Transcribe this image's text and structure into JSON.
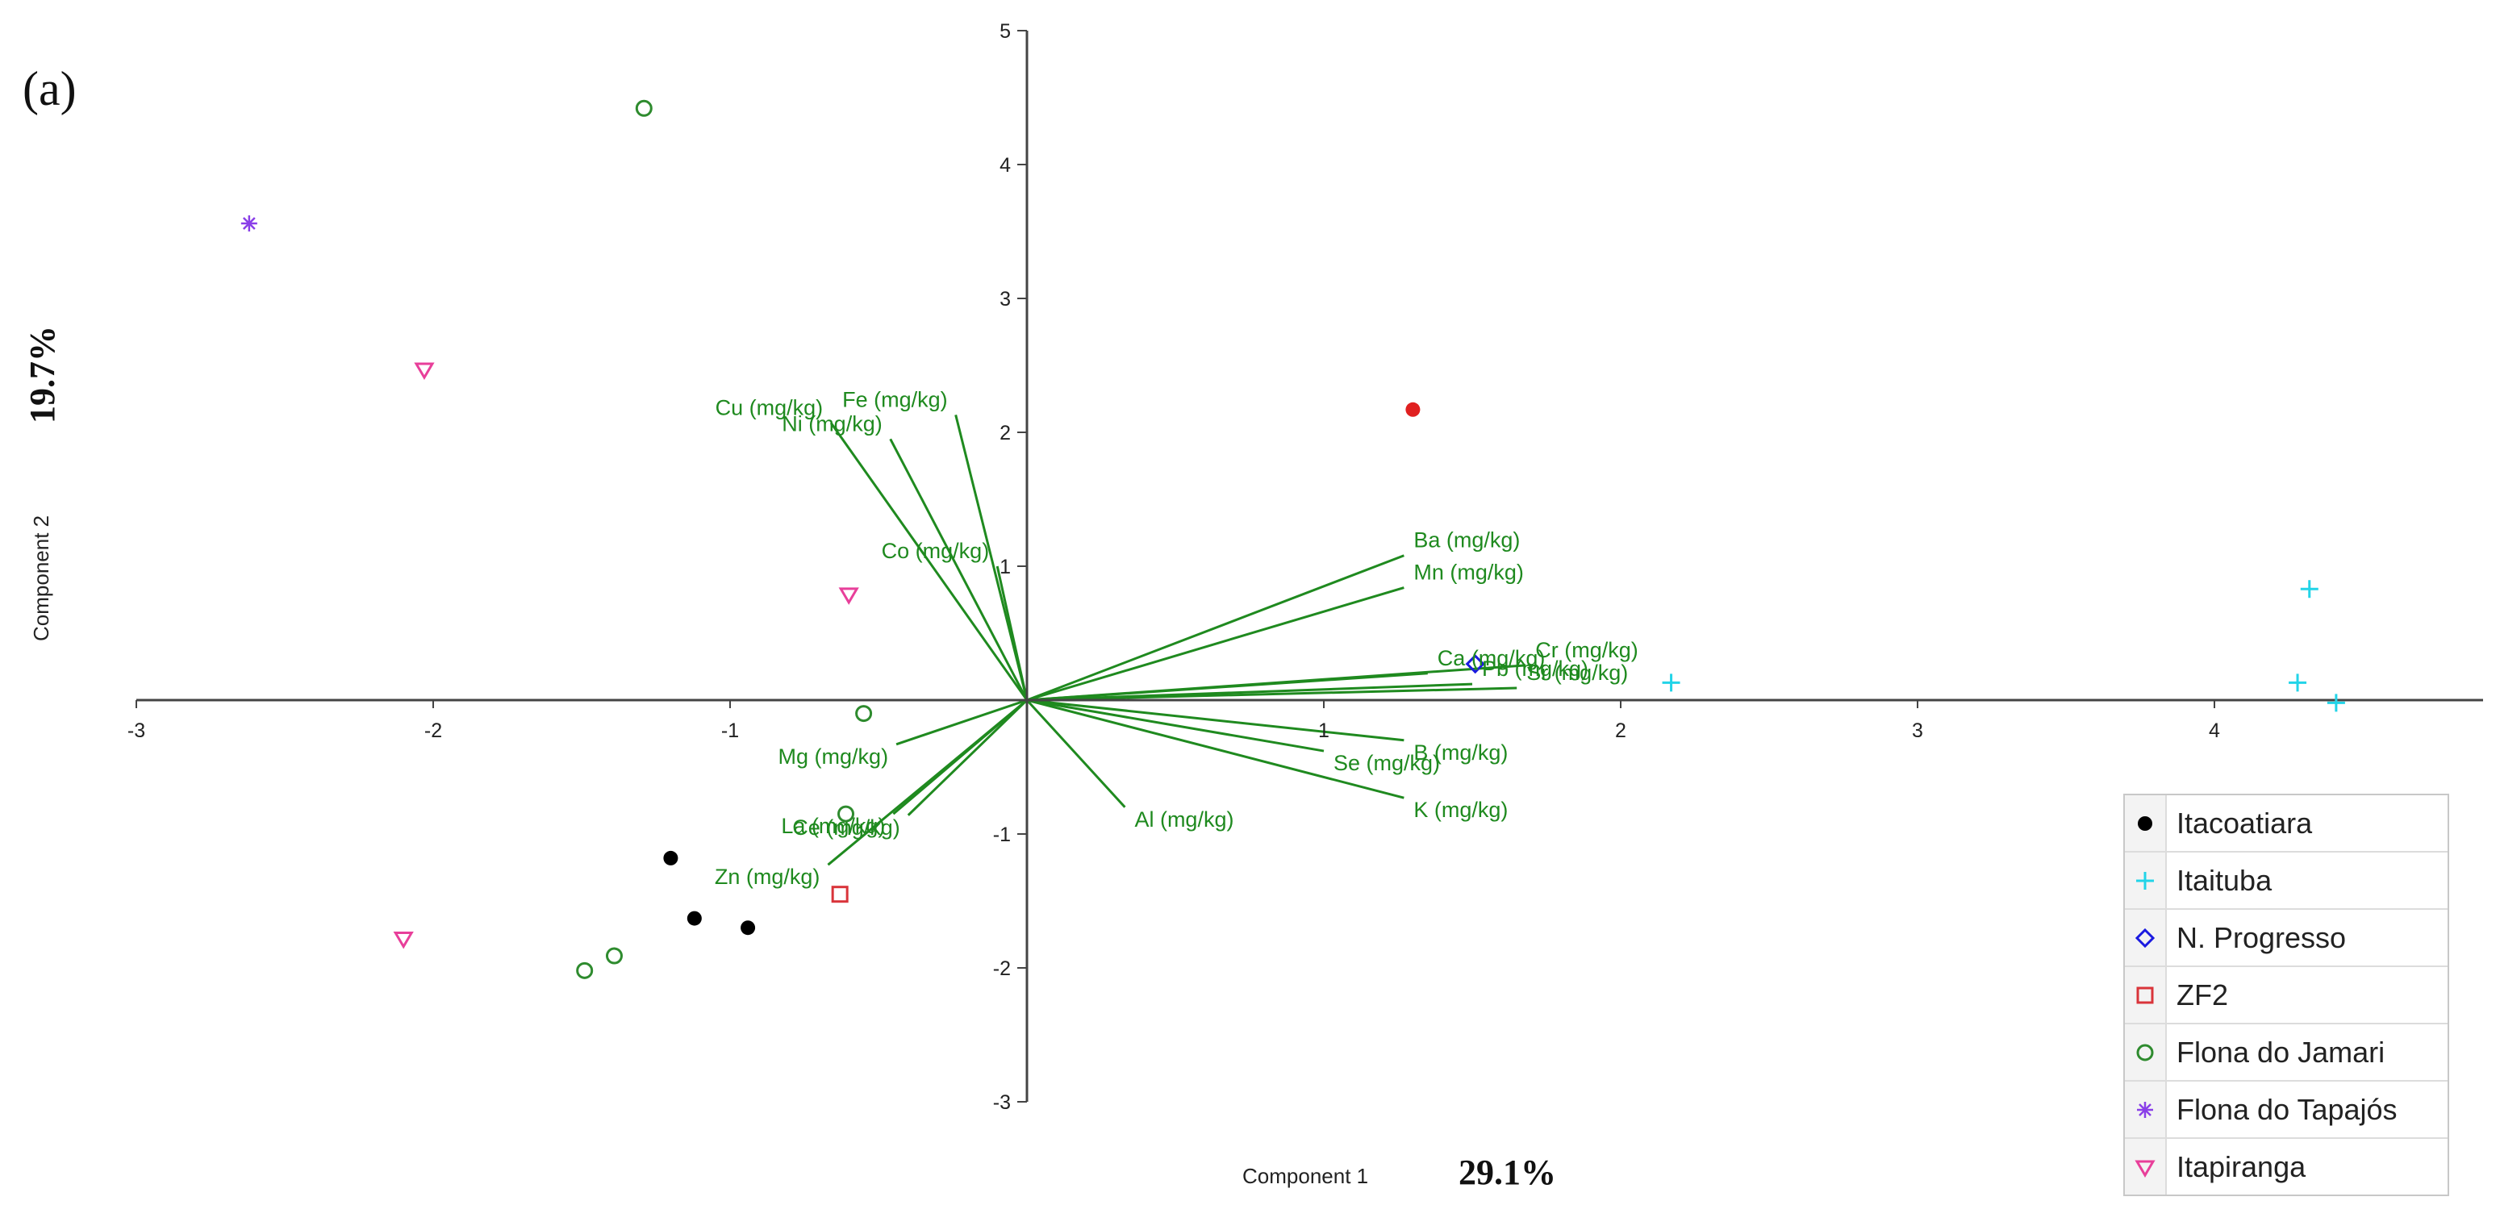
{
  "panel_label": "(a)",
  "colors": {
    "axis": "#444444",
    "loading": "#1f8a1f",
    "unassigned": "#e02020"
  },
  "chart_data": {
    "type": "scatter",
    "subtype": "biplot",
    "xlabel": "Component 1",
    "ylabel": "Component 2",
    "xlabel_pct": "29.1%",
    "ylabel_pct": "19.7%",
    "xlim": [
      -3,
      4.8
    ],
    "ylim": [
      -3,
      5
    ],
    "xticks": [
      -3,
      -2,
      -1,
      1,
      2,
      3,
      4
    ],
    "yticks": [
      -3,
      -2,
      -1,
      1,
      2,
      3,
      4,
      5
    ],
    "legend_position": "bottom-right",
    "series": [
      {
        "name": "Itacoatiara",
        "marker": "dot",
        "color": "#000000",
        "points": [
          [
            -1.2,
            -1.18
          ],
          [
            -1.12,
            -1.63
          ],
          [
            -0.94,
            -1.7
          ]
        ]
      },
      {
        "name": "Itaituba",
        "marker": "plus",
        "color": "#22d4e8",
        "points": [
          [
            4.32,
            0.83
          ],
          [
            4.28,
            0.13
          ],
          [
            4.41,
            -0.02
          ],
          [
            2.17,
            0.13
          ]
        ]
      },
      {
        "name": "N. Progresso",
        "marker": "diamond",
        "color": "#1a1ae0",
        "points": [
          [
            1.51,
            0.27
          ]
        ]
      },
      {
        "name": "ZF2",
        "marker": "square",
        "color": "#d9343a",
        "points": [
          [
            -0.63,
            -1.45
          ]
        ]
      },
      {
        "name": "Flona do Jamari",
        "marker": "circle",
        "color": "#2e8b2e",
        "points": [
          [
            -1.29,
            4.42
          ],
          [
            -0.55,
            -0.1
          ],
          [
            -0.61,
            -0.85
          ],
          [
            -1.49,
            -2.02
          ],
          [
            -1.39,
            -1.91
          ]
        ]
      },
      {
        "name": "Flona do Tapajós",
        "marker": "asterisk",
        "color": "#8a3fe8",
        "points": [
          [
            -2.62,
            3.56
          ]
        ]
      },
      {
        "name": "Itapiranga",
        "marker": "triangle",
        "color": "#e83f9a",
        "points": [
          [
            -2.03,
            2.47
          ],
          [
            -0.6,
            0.79
          ],
          [
            -2.1,
            -1.78
          ]
        ]
      }
    ],
    "unassigned_points": [
      [
        1.3,
        2.17
      ]
    ],
    "loadings": [
      {
        "label": "Cu (mg/kg)",
        "x": -0.66,
        "y": 2.07
      },
      {
        "label": "Ni  (mg/kg)",
        "x": -0.46,
        "y": 1.95
      },
      {
        "label": "Fe (mg/kg)",
        "x": -0.24,
        "y": 2.13
      },
      {
        "label": "Co (mg/kg)",
        "x": -0.1,
        "y": 1.0
      },
      {
        "label": "Ba (mg/kg)",
        "x": 1.27,
        "y": 1.08
      },
      {
        "label": "Mn (mg/kg)",
        "x": 1.27,
        "y": 0.84
      },
      {
        "label": "Ca (mg/kg)",
        "x": 1.35,
        "y": 0.2
      },
      {
        "label": "Cr (mg/kg)",
        "x": 1.68,
        "y": 0.26
      },
      {
        "label": "Pb (mg/kg)",
        "x": 1.5,
        "y": 0.12
      },
      {
        "label": "Sr (mg/kg)",
        "x": 1.65,
        "y": 0.09
      },
      {
        "label": "B (mg/kg)",
        "x": 1.27,
        "y": -0.3
      },
      {
        "label": "Se (mg/kg)",
        "x": 1.0,
        "y": -0.38
      },
      {
        "label": "K (mg/kg)",
        "x": 1.27,
        "y": -0.73
      },
      {
        "label": "Al (mg/kg)",
        "x": 0.33,
        "y": -0.8
      },
      {
        "label": "Mg  (mg/kg)",
        "x": -0.44,
        "y": -0.33
      },
      {
        "label": "La (mg/kg)",
        "x": -0.45,
        "y": -0.85
      },
      {
        "label": "Ce (mg/kg)",
        "x": -0.4,
        "y": -0.86
      },
      {
        "label": "Zn (mg/kg)",
        "x": -0.67,
        "y": -1.23
      }
    ]
  }
}
